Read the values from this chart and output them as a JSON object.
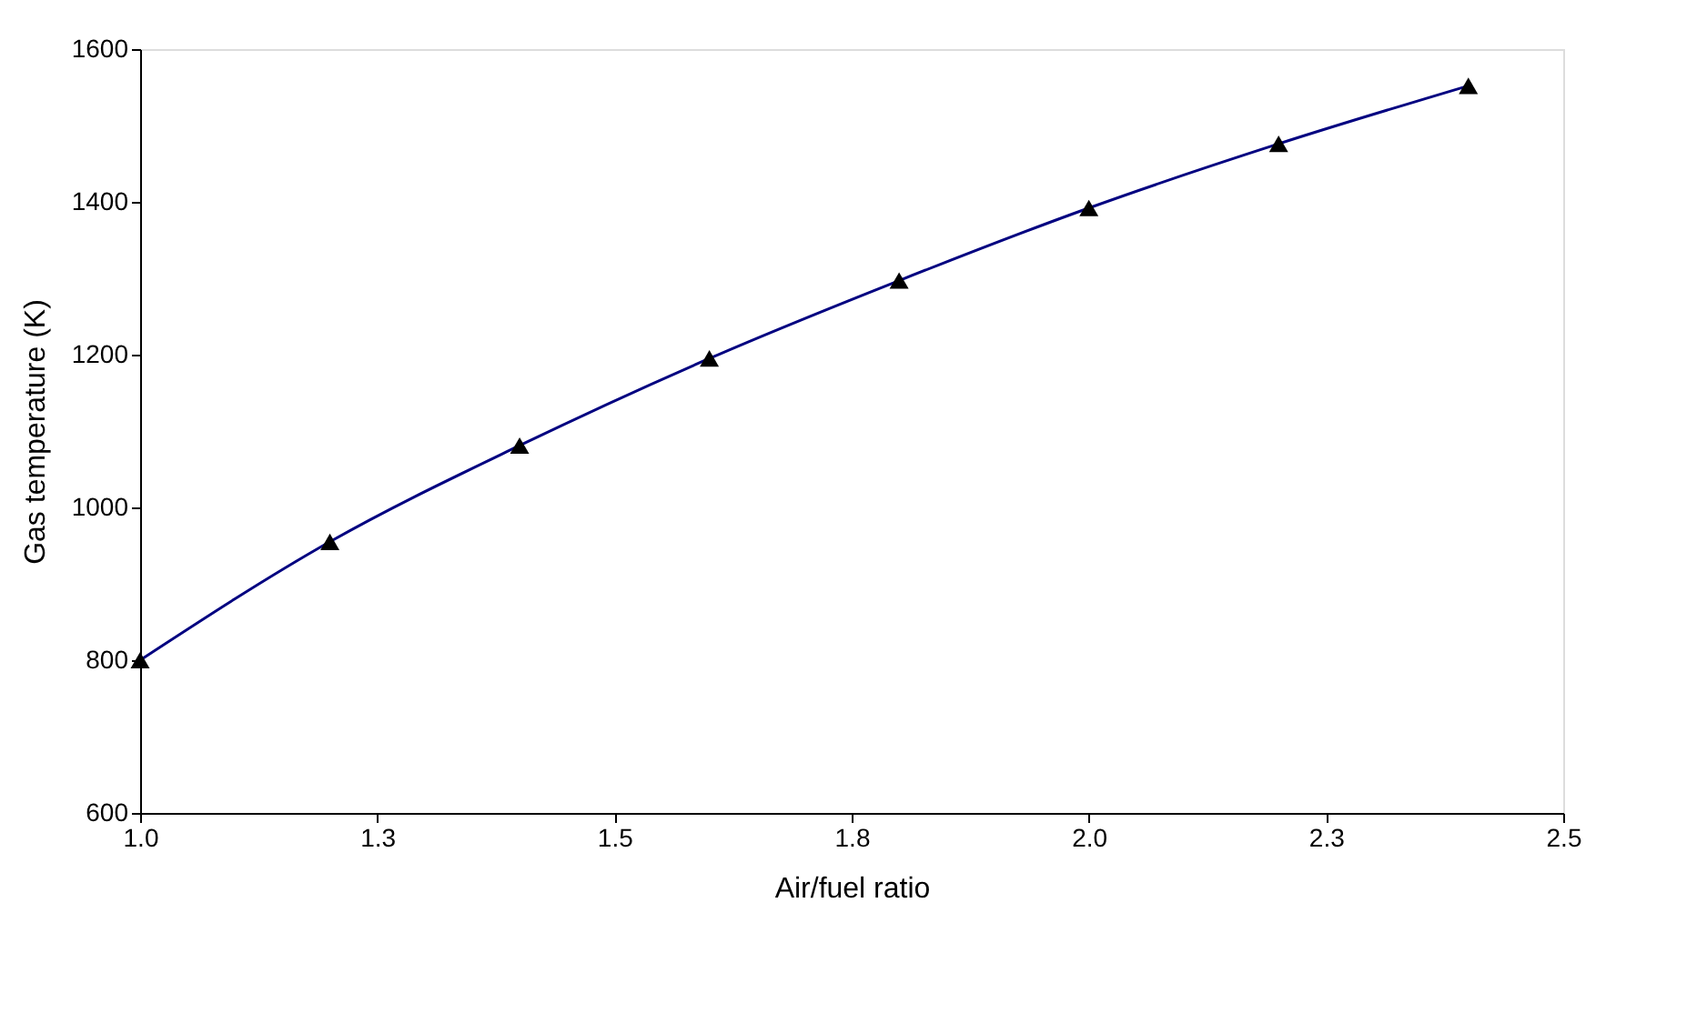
{
  "chart_data": {
    "type": "line",
    "xlabel": "Air/fuel ratio",
    "ylabel": "Gas temperature (K)",
    "x": [
      1.0,
      1.2,
      1.4,
      1.6,
      1.8,
      2.0,
      2.2,
      2.4
    ],
    "series": [
      {
        "color": "#000080",
        "values": [
          800,
          955,
          1081,
          1195,
          1297,
          1392,
          1476,
          1552
        ]
      }
    ],
    "marker": "triangle",
    "line_style": "solid",
    "grid": false,
    "xlim": [
      1.0,
      2.5
    ],
    "xticks": [
      {
        "value": 1,
        "label": "1.0"
      },
      {
        "value": 1.25,
        "label": "1.3"
      },
      1.5,
      {
        "value": 1.75,
        "label": "1.8"
      },
      {
        "value": 2,
        "label": "2.0"
      },
      {
        "value": 2.25,
        "label": "2.3"
      },
      2.5
    ],
    "ylim": [
      600,
      1600
    ],
    "yticks": [
      600,
      800,
      1000,
      1200,
      1400,
      1600
    ]
  }
}
